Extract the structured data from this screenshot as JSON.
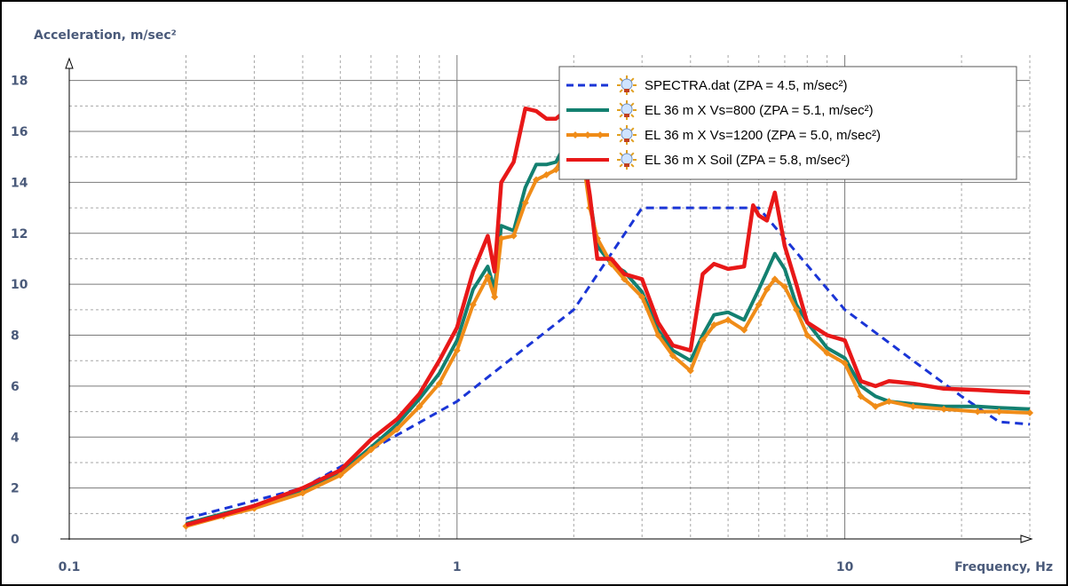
{
  "chart_data": {
    "type": "line",
    "xscale": "log",
    "xlim": [
      0.1,
      30
    ],
    "ylim": [
      0,
      19
    ],
    "xticks": [
      0.1,
      1,
      10
    ],
    "xtick_labels": [
      "0.1",
      "1",
      "10"
    ],
    "yticks": [
      0,
      2,
      4,
      6,
      8,
      10,
      12,
      14,
      16,
      18
    ],
    "ytick_labels": [
      "0",
      "2",
      "4",
      "6",
      "8",
      "10",
      "12",
      "14",
      "16",
      "18"
    ],
    "xlabel": "Frequency, Hz",
    "ylabel": "Acceleration, m/sec²",
    "grid": true,
    "legend_position": "top-right",
    "series": [
      {
        "name": "SPECTRA.dat   (ZPA = 4.5, m/sec²)",
        "color": "#1a35d6",
        "style": "dashed",
        "x": [
          0.2,
          0.4,
          1.0,
          2.0,
          3.0,
          6.0,
          10.0,
          15.0,
          20.0,
          25.0,
          30.0
        ],
        "y": [
          0.8,
          2.0,
          5.4,
          9.0,
          13.0,
          13.0,
          9.0,
          7.0,
          5.6,
          4.6,
          4.5
        ]
      },
      {
        "name": "EL 36 m X Vs=800   (ZPA = 5.1, m/sec²)",
        "color": "#138070",
        "style": "solid",
        "x": [
          0.2,
          0.25,
          0.3,
          0.4,
          0.5,
          0.6,
          0.7,
          0.8,
          0.9,
          1.0,
          1.1,
          1.2,
          1.25,
          1.3,
          1.4,
          1.5,
          1.6,
          1.7,
          1.8,
          1.9,
          1.95,
          2.0,
          2.1,
          2.2,
          2.3,
          2.5,
          2.7,
          3.0,
          3.3,
          3.6,
          4.0,
          4.3,
          4.6,
          5.0,
          5.5,
          6.0,
          6.3,
          6.6,
          7.0,
          7.5,
          8.0,
          9.0,
          10.0,
          11.0,
          12.0,
          13.0,
          15.0,
          18.0,
          22.0,
          25.0,
          30.0
        ],
        "y": [
          0.6,
          1.0,
          1.3,
          1.9,
          2.6,
          3.6,
          4.5,
          5.5,
          6.5,
          7.8,
          9.8,
          10.7,
          9.8,
          12.3,
          12.1,
          13.8,
          14.7,
          14.7,
          14.8,
          15.5,
          16.5,
          16.7,
          15.6,
          13.4,
          11.5,
          10.8,
          10.5,
          9.7,
          8.2,
          7.4,
          7.0,
          8.0,
          8.8,
          8.9,
          8.6,
          9.8,
          10.5,
          11.2,
          10.6,
          9.2,
          8.5,
          7.5,
          7.1,
          6.0,
          5.6,
          5.4,
          5.3,
          5.2,
          5.2,
          5.15,
          5.1
        ]
      },
      {
        "name": "EL 36 m  X Vs=1200   (ZPA = 5.0, m/sec²)",
        "color": "#f08c18",
        "style": "solid-markers",
        "x": [
          0.2,
          0.25,
          0.3,
          0.4,
          0.5,
          0.6,
          0.7,
          0.8,
          0.9,
          1.0,
          1.1,
          1.2,
          1.25,
          1.3,
          1.4,
          1.5,
          1.6,
          1.7,
          1.8,
          1.9,
          1.95,
          2.0,
          2.1,
          2.2,
          2.3,
          2.5,
          2.7,
          3.0,
          3.3,
          3.6,
          4.0,
          4.3,
          4.6,
          5.0,
          5.5,
          6.0,
          6.3,
          6.6,
          7.0,
          7.5,
          8.0,
          9.0,
          10.0,
          11.0,
          12.0,
          13.0,
          15.0,
          18.0,
          22.0,
          25.0,
          30.0
        ],
        "y": [
          0.5,
          0.9,
          1.2,
          1.8,
          2.5,
          3.5,
          4.3,
          5.2,
          6.1,
          7.4,
          9.2,
          10.3,
          9.5,
          11.8,
          11.9,
          13.2,
          14.1,
          14.3,
          14.5,
          15.2,
          15.9,
          16.0,
          15.2,
          13.0,
          11.8,
          10.8,
          10.2,
          9.5,
          8.0,
          7.2,
          6.6,
          7.8,
          8.4,
          8.6,
          8.2,
          9.2,
          9.8,
          10.2,
          9.9,
          9.0,
          8.0,
          7.3,
          6.9,
          5.6,
          5.2,
          5.4,
          5.2,
          5.1,
          5.0,
          5.0,
          4.95
        ]
      },
      {
        "name": "EL 36 m  X Soil   (ZPA = 5.8, m/sec²)",
        "color": "#e81818",
        "style": "solid",
        "x": [
          0.2,
          0.25,
          0.3,
          0.4,
          0.5,
          0.6,
          0.7,
          0.8,
          0.9,
          1.0,
          1.1,
          1.2,
          1.25,
          1.3,
          1.4,
          1.5,
          1.6,
          1.7,
          1.8,
          1.9,
          1.95,
          2.0,
          2.1,
          2.2,
          2.3,
          2.5,
          2.7,
          3.0,
          3.3,
          3.6,
          4.0,
          4.3,
          4.6,
          5.0,
          5.5,
          5.8,
          6.0,
          6.3,
          6.6,
          7.0,
          7.5,
          8.0,
          9.0,
          10.0,
          11.0,
          12.0,
          13.0,
          15.0,
          18.0,
          22.0,
          25.0,
          30.0
        ],
        "y": [
          0.55,
          0.95,
          1.3,
          2.0,
          2.7,
          3.9,
          4.7,
          5.7,
          7.0,
          8.3,
          10.5,
          11.9,
          10.5,
          14.0,
          14.8,
          16.9,
          16.8,
          16.5,
          16.5,
          16.8,
          17.6,
          17.5,
          15.5,
          13.5,
          11.0,
          11.0,
          10.4,
          10.2,
          8.5,
          7.6,
          7.4,
          10.4,
          10.8,
          10.6,
          10.7,
          13.1,
          12.7,
          12.5,
          13.6,
          11.5,
          10.0,
          8.5,
          8.0,
          7.8,
          6.2,
          6.0,
          6.2,
          6.1,
          5.9,
          5.85,
          5.8,
          5.75
        ]
      }
    ]
  }
}
